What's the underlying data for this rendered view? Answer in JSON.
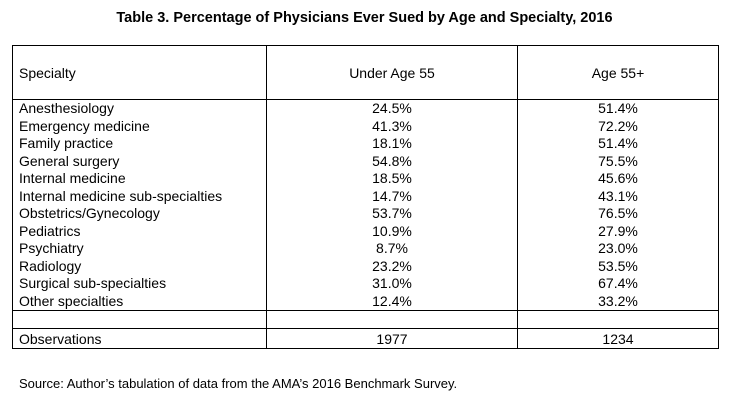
{
  "title": "Table 3. Percentage of Physicians Ever Sued by Age and Specialty, 2016",
  "columns": [
    "Specialty",
    "Under Age 55",
    "Age 55+"
  ],
  "rows": [
    {
      "specialty": "Anesthesiology",
      "under55": "24.5%",
      "over55": "51.4%"
    },
    {
      "specialty": "Emergency medicine",
      "under55": "41.3%",
      "over55": "72.2%"
    },
    {
      "specialty": "Family practice",
      "under55": "18.1%",
      "over55": "51.4%"
    },
    {
      "specialty": "General surgery",
      "under55": "54.8%",
      "over55": "75.5%"
    },
    {
      "specialty": "Internal medicine",
      "under55": "18.5%",
      "over55": "45.6%"
    },
    {
      "specialty": "Internal medicine sub-specialties",
      "under55": "14.7%",
      "over55": "43.1%"
    },
    {
      "specialty": "Obstetrics/Gynecology",
      "under55": "53.7%",
      "over55": "76.5%"
    },
    {
      "specialty": "Pediatrics",
      "under55": "10.9%",
      "over55": "27.9%"
    },
    {
      "specialty": "Psychiatry",
      "under55": "8.7%",
      "over55": "23.0%"
    },
    {
      "specialty": "Radiology",
      "under55": "23.2%",
      "over55": "53.5%"
    },
    {
      "specialty": "Surgical sub-specialties",
      "under55": "31.0%",
      "over55": "67.4%"
    },
    {
      "specialty": "Other specialties",
      "under55": "12.4%",
      "over55": "33.2%"
    }
  ],
  "observations": {
    "label": "Observations",
    "under55": "1977",
    "over55": "1234"
  },
  "source": "Source: Author’s tabulation of data from the AMA’s 2016 Benchmark Survey."
}
